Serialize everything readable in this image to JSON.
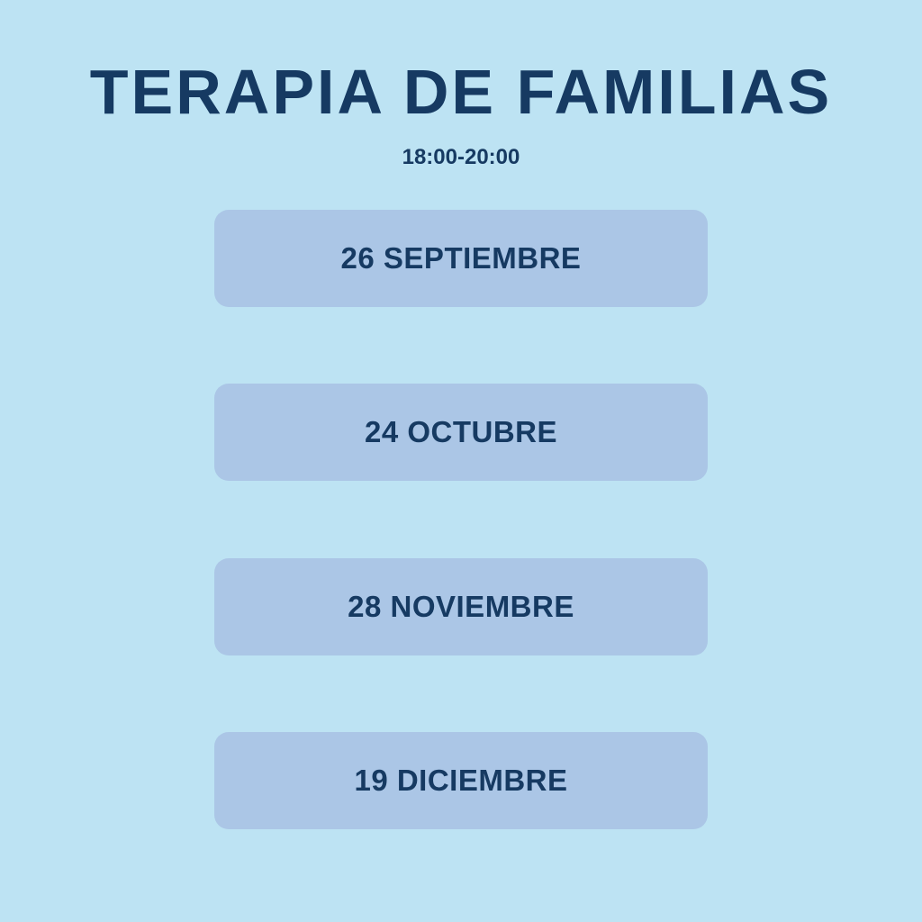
{
  "title": "TERAPIA DE FAMILIAS",
  "time": "18:00-20:00",
  "dates": [
    "26 SEPTIEMBRE",
    "24 OCTUBRE",
    "28 NOVIEMBRE",
    "19 DICIEMBRE"
  ],
  "colors": {
    "background": "#bde3f3",
    "box": "#abc6e6",
    "text": "#163a62"
  }
}
